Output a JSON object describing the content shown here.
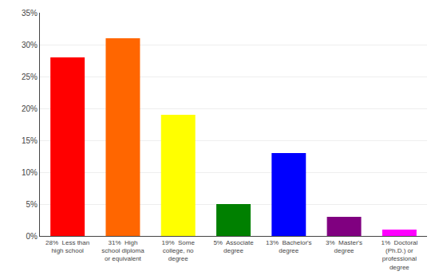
{
  "chart_data": {
    "type": "bar",
    "categories": [
      "28%  Less than\nhigh school",
      "31%  High\nschool diploma\nor equivalent",
      "19%  Some\ncollege, no\ndegree",
      "5%  Associate\ndegree",
      "13%  Bachelor's\ndegree",
      "3%  Master's\ndegree",
      "1%  Doctoral\n(Ph.D.) or\nprofessional\ndegree"
    ],
    "values": [
      28,
      31,
      19,
      5,
      13,
      3,
      1
    ],
    "colors": [
      "#ff0000",
      "#ff6600",
      "#ffff00",
      "#008000",
      "#0000ff",
      "#800080",
      "#ff00ff"
    ],
    "ylim": [
      0,
      35
    ],
    "yticks": [
      {
        "value": 0,
        "label": "0%"
      },
      {
        "value": 5,
        "label": "5%"
      },
      {
        "value": 10,
        "label": "10%"
      },
      {
        "value": 15,
        "label": "15%"
      },
      {
        "value": 20,
        "label": "20%"
      },
      {
        "value": 25,
        "label": "25%"
      },
      {
        "value": 30,
        "label": "30%"
      },
      {
        "value": 35,
        "label": "35%"
      }
    ],
    "grid": true
  }
}
